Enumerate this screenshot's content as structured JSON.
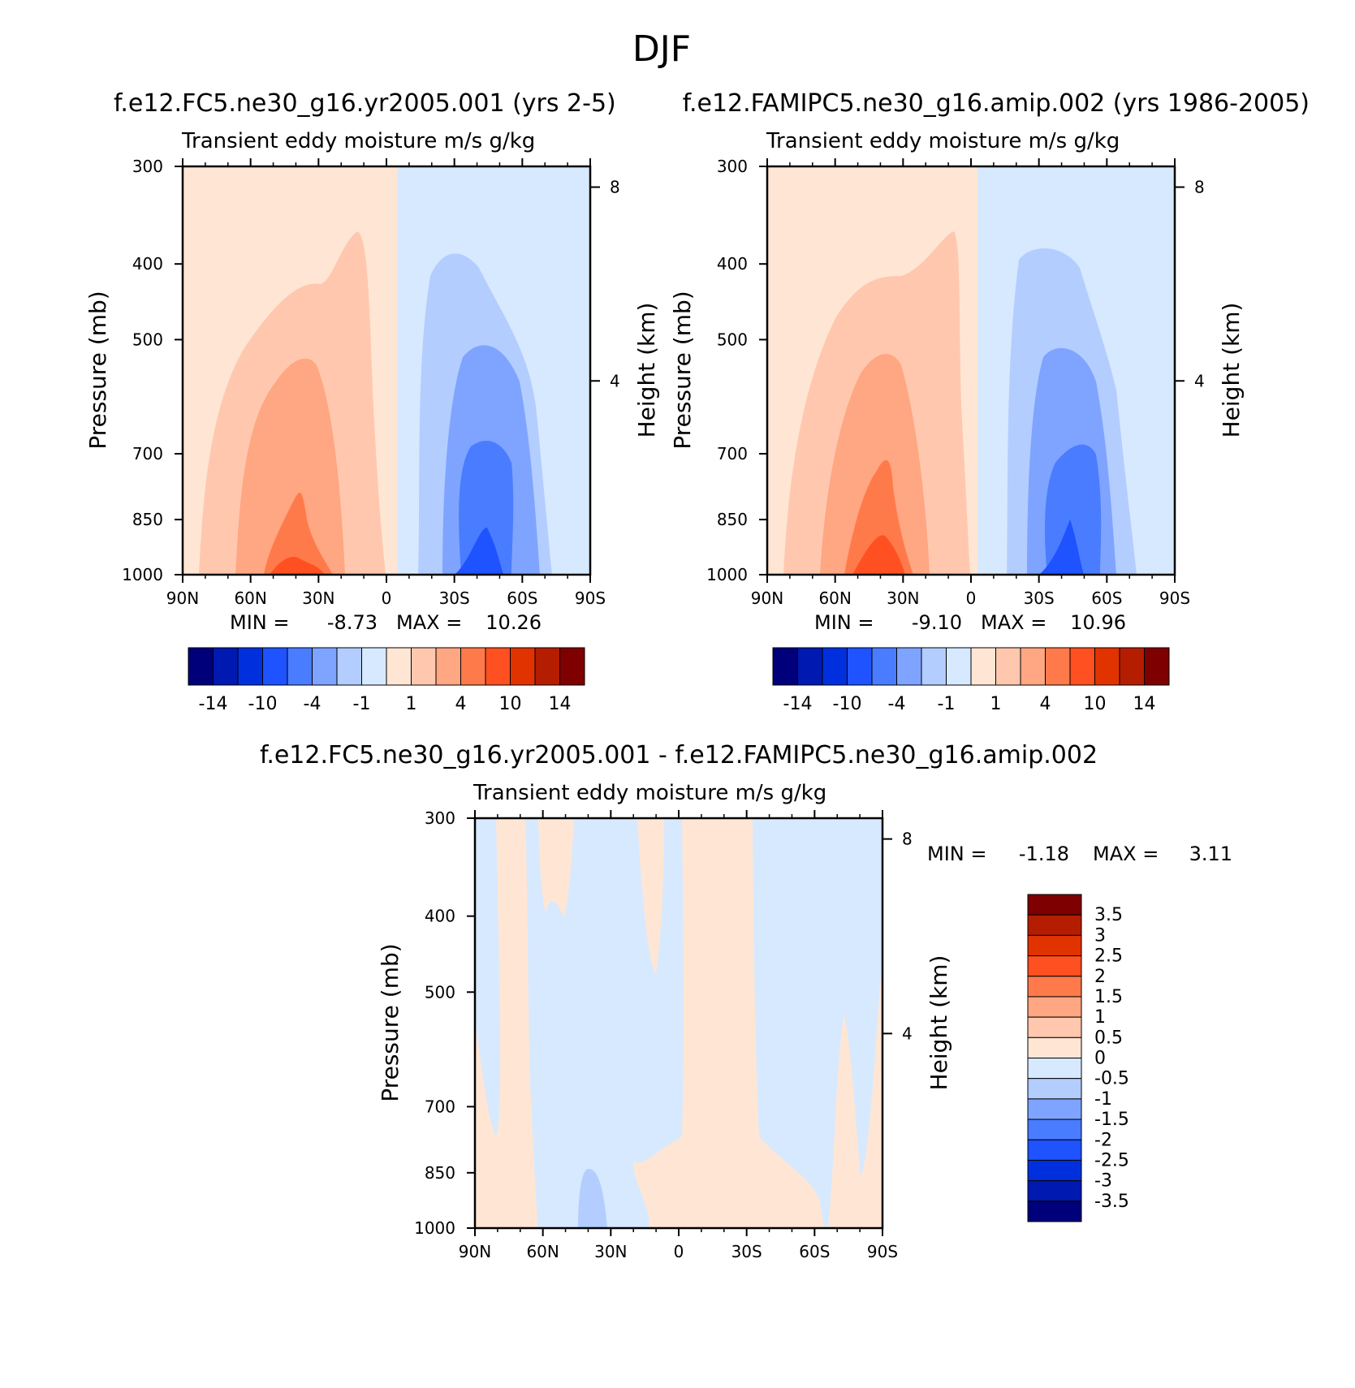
{
  "figure": {
    "title": "DJF",
    "colors": {
      "main": [
        "#00007a",
        "#0019b0",
        "#0030dd",
        "#1e53ff",
        "#4a7cff",
        "#7ea4ff",
        "#b3cdff",
        "#d7e9ff",
        "#ffe6d4",
        "#ffc8ae",
        "#ffa682",
        "#ff7a4a",
        "#ff5022",
        "#e03300",
        "#b51d00",
        "#7e0000"
      ],
      "diff": [
        "#00007a",
        "#0019b0",
        "#0030dd",
        "#1e53ff",
        "#4a7cff",
        "#7ea4ff",
        "#b3cdff",
        "#d7e9ff",
        "#ffe6d4",
        "#ffc8ae",
        "#ffa682",
        "#ff7a4a",
        "#ff5022",
        "#e03300",
        "#b51d00",
        "#7e0000"
      ]
    }
  },
  "chart_data": [
    {
      "id": "panel1",
      "type": "heatmap",
      "case_title": "f.e12.FC5.ne30_g16.yr2005.001 (yrs 2-5)",
      "subtitle": "Transient eddy moisture m/s g/kg",
      "ylabel": "Pressure (mb)",
      "ylabel_right": "Height (km)",
      "x_ticks": [
        "90N",
        "60N",
        "30N",
        "0",
        "30S",
        "60S",
        "90S"
      ],
      "y_ticks": [
        "300",
        "400",
        "500",
        "700",
        "850",
        "1000"
      ],
      "y_ticks_right": [
        "8",
        "4"
      ],
      "xlim": [
        90,
        -90
      ],
      "ylim": [
        1000,
        300
      ],
      "min_label": "MIN =",
      "min_value": "-8.73",
      "max_label": "MAX =",
      "max_value": "10.26",
      "colorbar_labels": [
        "-14",
        "-10",
        "-4",
        "-1",
        "1",
        "4",
        "10",
        "14"
      ],
      "contour_levels": [
        -14,
        -12,
        -10,
        -7,
        -4,
        -2,
        -1,
        0,
        1,
        2,
        4,
        7,
        10,
        12,
        14
      ]
    },
    {
      "id": "panel2",
      "type": "heatmap",
      "case_title": "f.e12.FAMIPC5.ne30_g16.amip.002 (yrs 1986-2005)",
      "subtitle": "Transient eddy moisture m/s g/kg",
      "ylabel": "Pressure (mb)",
      "ylabel_right": "Height (km)",
      "x_ticks": [
        "90N",
        "60N",
        "30N",
        "0",
        "30S",
        "60S",
        "90S"
      ],
      "y_ticks": [
        "300",
        "400",
        "500",
        "700",
        "850",
        "1000"
      ],
      "y_ticks_right": [
        "8",
        "4"
      ],
      "xlim": [
        90,
        -90
      ],
      "ylim": [
        1000,
        300
      ],
      "min_label": "MIN =",
      "min_value": "-9.10",
      "max_label": "MAX =",
      "max_value": "10.96",
      "colorbar_labels": [
        "-14",
        "-10",
        "-4",
        "-1",
        "1",
        "4",
        "10",
        "14"
      ],
      "contour_levels": [
        -14,
        -12,
        -10,
        -7,
        -4,
        -2,
        -1,
        0,
        1,
        2,
        4,
        7,
        10,
        12,
        14
      ]
    },
    {
      "id": "panel3",
      "type": "heatmap",
      "case_title": "f.e12.FC5.ne30_g16.yr2005.001 - f.e12.FAMIPC5.ne30_g16.amip.002",
      "subtitle": "Transient eddy moisture m/s g/kg",
      "ylabel": "Pressure (mb)",
      "ylabel_right": "Height (km)",
      "x_ticks": [
        "90N",
        "60N",
        "30N",
        "0",
        "30S",
        "60S",
        "90S"
      ],
      "y_ticks": [
        "300",
        "400",
        "500",
        "700",
        "850",
        "1000"
      ],
      "y_ticks_right": [
        "8",
        "4"
      ],
      "xlim": [
        90,
        -90
      ],
      "ylim": [
        1000,
        300
      ],
      "min_label": "MIN =",
      "min_value": "-1.18",
      "max_label": "MAX =",
      "max_value": "3.11",
      "colorbar_labels": [
        "3.5",
        "3",
        "2.5",
        "2",
        "1.5",
        "1",
        "0.5",
        "0",
        "-0.5",
        "-1",
        "-1.5",
        "-2",
        "-2.5",
        "-3",
        "-3.5"
      ],
      "contour_levels": [
        -3.5,
        -3,
        -2.5,
        -2,
        -1.5,
        -1,
        -0.5,
        0,
        0.5,
        1,
        1.5,
        2,
        2.5,
        3,
        3.5
      ]
    }
  ]
}
